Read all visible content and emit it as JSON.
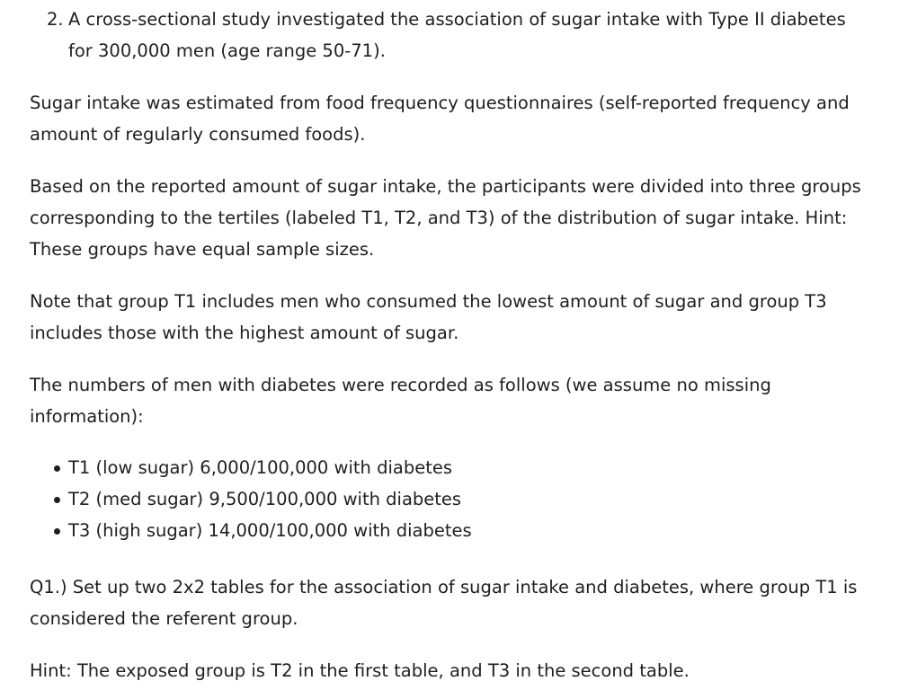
{
  "question": {
    "number": "2.",
    "lines": [
      "A cross-sectional study investigated the association of sugar intake with Type II diabetes",
      "for 300,000 men (age range 50-71)."
    ]
  },
  "paragraphs": [
    {
      "lines": [
        "Sugar intake was estimated from food frequency questionnaires (self-reported frequency and",
        "amount of regularly consumed foods)."
      ]
    },
    {
      "lines": [
        "Based on the reported amount of sugar intake, the participants were divided into three groups",
        "corresponding to the tertiles (labeled T1, T2, and T3) of the distribution of sugar intake. Hint:",
        "These groups have equal sample sizes."
      ]
    },
    {
      "lines": [
        "Note that group T1 includes men who consumed the lowest amount of sugar and group T3",
        "includes those with the highest amount of sugar."
      ]
    },
    {
      "lines": [
        "The numbers of men with diabetes were recorded as follows (we assume no missing",
        "information):"
      ]
    }
  ],
  "bullets": [
    "T1 (low sugar) 6,000/100,000 with diabetes",
    "T2 (med sugar) 9,500/100,000 with diabetes",
    "T3 (high sugar) 14,000/100,000 with diabetes"
  ],
  "q1": {
    "lines": [
      "Q1.) Set up two 2x2 tables for the association of sugar intake and diabetes, where group T1 is",
      "considered the referent group."
    ]
  },
  "hint": {
    "lines": [
      "Hint: The exposed group is T2 in the first table, and T3 in the second table."
    ]
  }
}
